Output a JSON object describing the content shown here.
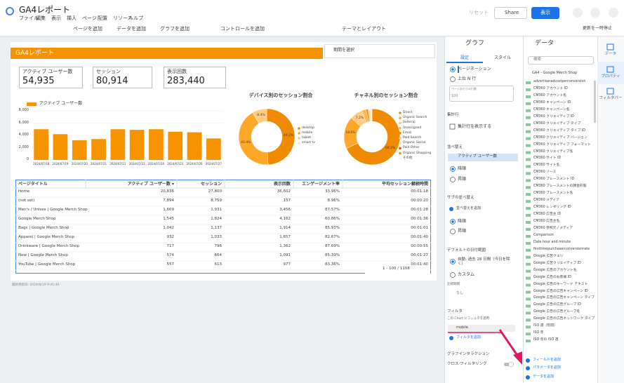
{
  "app": {
    "title": "GA4レポート",
    "menu": [
      "ファイル",
      "編集",
      "表示",
      "挿入",
      "ページ",
      "配置",
      "リソース",
      "ヘルプ"
    ],
    "reset": "リセット",
    "share": "Share",
    "view": "表示",
    "toolbar": [
      "ページを追加",
      "データを追加",
      "グラフを追加",
      "コントロールを追加",
      "テーマとレイアウト"
    ],
    "pause": "更新を一時停止"
  },
  "report": {
    "header": "GA4レポート",
    "date_control": "期間を選択",
    "scorecards": [
      {
        "label": "アクティブ ユーザー数",
        "value": "54,935"
      },
      {
        "label": "セッション",
        "value": "80,914"
      },
      {
        "label": "表示回数",
        "value": "283,440"
      }
    ],
    "bar_chart": {
      "type": "bar",
      "series_name": "アクティブ ユーザー数",
      "color": "#f59300",
      "categories": [
        "2024/07/18",
        "2024/07/19",
        "2024/07/20",
        "2024/07/21",
        "2024/07/22",
        "2024/07/23",
        "2024/07/24",
        "2024/07/25",
        "2024/07/26",
        "2024/07/27"
      ],
      "values": [
        5000,
        4200,
        3200,
        3400,
        5000,
        4900,
        5000,
        4600,
        4500,
        3500
      ],
      "ylim": [
        0,
        8000
      ],
      "yticks": [
        0,
        {
          "value": 2000,
          "label": "2,000"
        },
        {
          "value": 4000,
          "label": "4,000"
        },
        {
          "value": 6000,
          "label": "6,000"
        },
        {
          "value": 8000,
          "label": "8,000"
        }
      ]
    },
    "device_chart": {
      "type": "pie",
      "title": "デバイス別のセッション割合",
      "categories": [
        "desktop",
        "mobile",
        "tablet",
        "smart tv"
      ],
      "values": [
        49.2,
        42.4,
        8.4,
        0
      ],
      "value_labels": [
        "49.2%",
        "42.4%",
        "8.4%",
        null
      ],
      "colors": [
        "#f08a00",
        "#ffa726",
        "#ffcc80",
        "#ffe0b2"
      ]
    },
    "channel_chart": {
      "type": "pie",
      "title": "チャネル別のセッション割合",
      "categories": [
        "Direct",
        "Organic Search",
        "Referral",
        "Unassigned",
        "Email",
        "Paid Search",
        "Organic Social",
        "Paid Other",
        "Organic Shopping",
        "その他"
      ],
      "values": [
        68.2,
        18.6,
        7.2,
        2.5,
        1.2,
        0.9,
        0.6,
        0.3,
        0.2,
        0.3
      ],
      "value_labels": [
        "68.2%",
        "18.6%",
        "7.2%",
        null,
        null,
        null,
        null,
        null,
        null,
        null
      ],
      "colors": [
        "#f08a00",
        "#ffa726",
        "#ffcc80",
        "#ffb74d",
        "#fb8c00",
        "#ffd180",
        "#ffe0b2",
        "#e65100",
        "#ff9800",
        "#fff3e0"
      ]
    },
    "table": {
      "columns": [
        "ページタイトル",
        "アクティブ ユーザー数 ▾",
        "セッション",
        "表示回数",
        "エンゲージメント率",
        "平均セッション継続時間"
      ],
      "rows": [
        [
          "Home",
          "20,836",
          "27,800",
          "36,602",
          "33.96%",
          "00:01:18"
        ],
        [
          "(not set)",
          "7,894",
          "8,759",
          "157",
          "8.96%",
          "00:00:20"
        ],
        [
          "Men's / Unisex | Google Merch Shop",
          "1,669",
          "1,931",
          "3,456",
          "87.57%",
          "00:01:28"
        ],
        [
          "Google Merch Shop",
          "1,545",
          "1,824",
          "4,162",
          "60.86%",
          "00:01:36"
        ],
        [
          "Bags | Google Merch Shop",
          "1,042",
          "1,137",
          "1,914",
          "85.93%",
          "00:01:01"
        ],
        [
          "Apparel | Google Merch Shop",
          "932",
          "1,033",
          "1,657",
          "82.67%",
          "00:01:40"
        ],
        [
          "Drinkware | Google Merch Shop",
          "717",
          "796",
          "1,362",
          "87.69%",
          "00:00:55"
        ],
        [
          "New | Google Merch Shop",
          "574",
          "664",
          "1,091",
          "85.39%",
          "00:01:27"
        ],
        [
          "YouTube | Google Merch Shop",
          "557",
          "613",
          "977",
          "83.36%",
          "00:01:40"
        ]
      ],
      "pagination": "1 - 100 / 1108"
    },
    "footer": "最終更新日: 2024/8/19 9:41:44"
  },
  "properties": {
    "header": "グラフ",
    "tabs": [
      "設定",
      "スタイル"
    ],
    "pagination": "ページネーション",
    "top_n": "上位 N 行",
    "rows_per_page": "ページあたりの行数",
    "rows_value": "100",
    "summary": "集計行",
    "summary_show": "集計行を表示する",
    "sort": "並べ替え",
    "sort_field": "アクティブ ユーザー数",
    "desc": "降順",
    "asc": "昇順",
    "sub_sort": "サブの並べ替え",
    "add_sort": "並べ替えを追加",
    "desc2": "降順",
    "asc2": "昇順",
    "date_range": "デフォルトの日付範囲",
    "auto": "自動: 過去 28 日間（今日を除く）",
    "custom": "カスタム",
    "compare": "比較期間",
    "none": "なし",
    "filter": "フィルタ",
    "filter_apply": "この Chart にフィルタを適用",
    "filter_item": "mobile",
    "add_filter": "フィルタを追加",
    "interaction": "グラフインタラクション",
    "cross": "クロス フィルタリング"
  },
  "data_panel": {
    "header": "データ",
    "search": "検索",
    "source": "GA4 - Google Merch Shop",
    "fields": [
      "advertiseradcostperconversion",
      "CM360 アカウント ID",
      "CM360 アカウント名",
      "CM360 キャンペーン ID",
      "CM360 キャンペーン名",
      "CM360 クリエイティブ ID",
      "CM360 クリエイティブ タイプ",
      "CM360 クリエイティブ タイプ ID",
      "CM360 クリエイティブ バージョン",
      "CM360 クリエイティブ フォーマット",
      "CM360 クリエイティブ名",
      "CM360 サイト ID",
      "CM360 サイト名",
      "CM360 ソース",
      "CM360 プレースメント ID",
      "CM360 プレースメントの課金形態",
      "CM360 プレースメント名",
      "CM360 メディア",
      "CM360 レンダリング ID",
      "CM360 広告主 ID",
      "CM360 広告主名",
      "CM360 参照元 / メディア",
      "Comparison",
      "Date hour and minute",
      "firsttimepurchaserconversionrate",
      "Google 広告クエリ",
      "Google 広告クリエイティブ ID",
      "Google 広告のアカウント名",
      "Google 広告のお客様 ID",
      "Google 広告のキーワード テキスト",
      "Google 広告の広告キャンペーン ID",
      "Google 広告の広告キャンペーン タイプ",
      "Google 広告の広告グループ ID",
      "Google 広告の広告グループ名",
      "Google 広告の広告ネットワーク タイプ",
      "ISO 週（年間）",
      "ISO 年",
      "ISO 年の ISO 週"
    ],
    "add_field": "フィールドを追加",
    "add_param": "パラメータを追加",
    "add_data": "データを追加"
  },
  "side_tabs": [
    "データ",
    "プロパティ",
    "フィルタバー"
  ]
}
